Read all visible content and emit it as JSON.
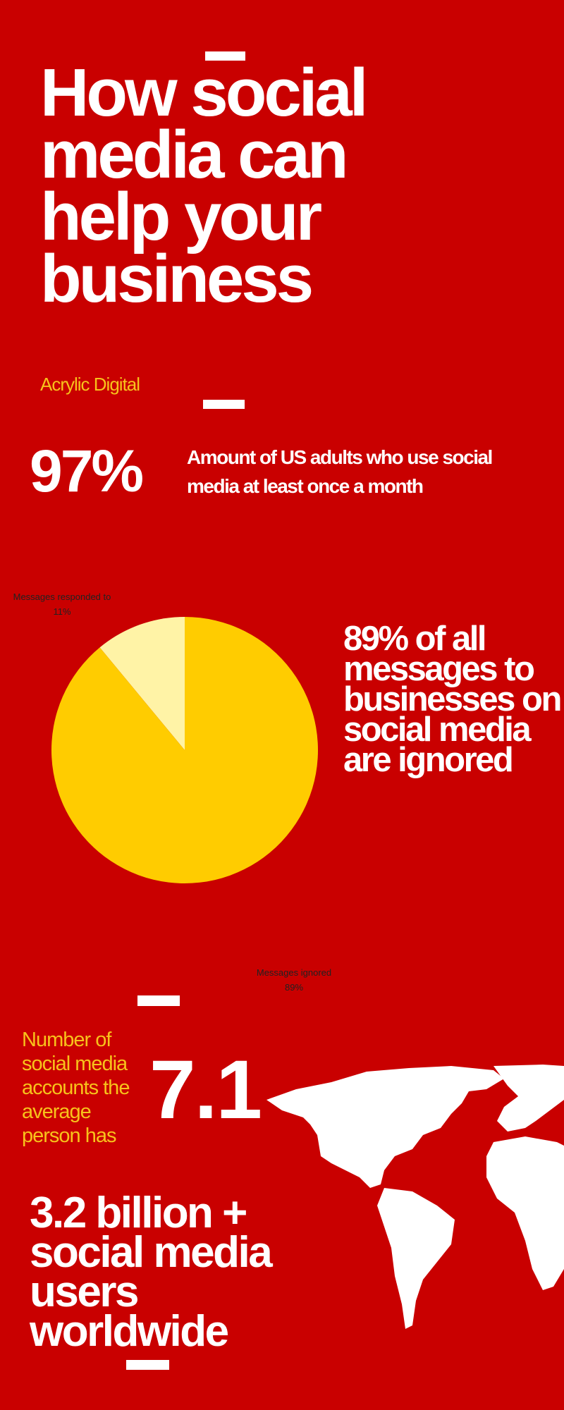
{
  "title": "How social media can help your business",
  "author": "Acrylic Digital",
  "stat_adults": {
    "figure": "97%",
    "text": "Amount of US adults who use social media at least once a month"
  },
  "chart_data": {
    "type": "pie",
    "categories": [
      "Messages responded to",
      "Messages ignored"
    ],
    "values": [
      11,
      89
    ],
    "value_labels": [
      "11%",
      "89%"
    ],
    "colors": [
      "#fff3a6",
      "#ffcc00"
    ]
  },
  "stat_ignored": {
    "text": "89% of all messages to businesses on social media are ignored"
  },
  "stat_accounts": {
    "label": "Number of social media accounts the average person has",
    "figure": "7.1"
  },
  "stat_users": {
    "text": "3.2 billion + social media users worldwide"
  }
}
